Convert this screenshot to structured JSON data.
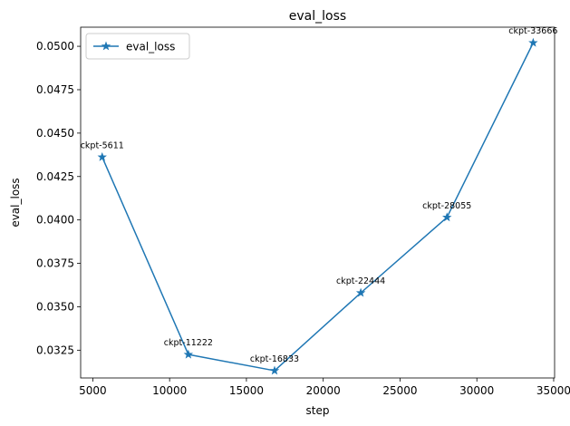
{
  "chart_data": {
    "type": "line",
    "title": "eval_loss",
    "xlabel": "step",
    "ylabel": "eval_loss",
    "xlim": [
      4210,
      35060
    ],
    "ylim": [
      0.0309,
      0.0511
    ],
    "xticks": [
      5000,
      10000,
      15000,
      20000,
      25000,
      30000,
      35000
    ],
    "xtick_labels": [
      "5000",
      "10000",
      "15000",
      "20000",
      "25000",
      "30000",
      "35000"
    ],
    "yticks": [
      0.0325,
      0.035,
      0.0375,
      0.04,
      0.0425,
      0.045,
      0.0475,
      0.05
    ],
    "ytick_labels": [
      "0.0325",
      "0.0350",
      "0.0375",
      "0.0400",
      "0.0425",
      "0.0450",
      "0.0475",
      "0.0500"
    ],
    "grid": false,
    "legend": "upper-left",
    "series": [
      {
        "name": "eval_loss",
        "color": "#1f77b4",
        "marker": "star",
        "x": [
          5611,
          11222,
          16833,
          22444,
          28055,
          33666
        ],
        "y": [
          0.04362,
          0.03225,
          0.03132,
          0.0358,
          0.04015,
          0.0502
        ],
        "point_labels": [
          "ckpt-5611",
          "ckpt-11222",
          "ckpt-16833",
          "ckpt-22444",
          "ckpt-28055",
          "ckpt-33666"
        ]
      }
    ]
  }
}
